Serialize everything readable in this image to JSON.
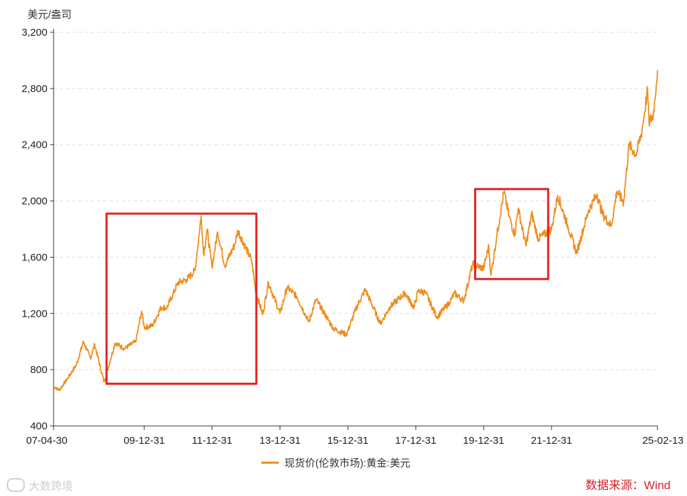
{
  "chart_data": {
    "type": "line",
    "ylabel": "美元/盎司",
    "y_ticks": [
      "3,200",
      "2,800",
      "2,400",
      "2,000",
      "1,600",
      "1,200",
      "800",
      "400"
    ],
    "y_tick_values": [
      3200,
      2800,
      2400,
      2000,
      1600,
      1200,
      800,
      400
    ],
    "ylim": [
      400,
      3200
    ],
    "x_ticks": [
      "07-04-30",
      "09-12-31",
      "11-12-31",
      "13-12-31",
      "15-12-31",
      "17-12-31",
      "19-12-31",
      "21-12-31",
      "25-02-13"
    ],
    "x_tick_dates": [
      "2007-04-30",
      "2009-12-31",
      "2011-12-31",
      "2013-12-31",
      "2015-12-31",
      "2017-12-31",
      "2019-12-31",
      "2021-12-31",
      "2025-02-13"
    ],
    "xlim": [
      "2007-04-30",
      "2025-02-13"
    ],
    "grid": "horizontal-dashed",
    "legend_position": "bottom-center",
    "series": [
      {
        "name": "现货价(伦敦市场):黄金:美元",
        "color": "#f08c1c",
        "points": [
          [
            "2007-04-30",
            680
          ],
          [
            "2007-06-30",
            655
          ],
          [
            "2007-09-30",
            740
          ],
          [
            "2007-12-31",
            835
          ],
          [
            "2008-03-17",
            1000
          ],
          [
            "2008-05-31",
            880
          ],
          [
            "2008-07-15",
            980
          ],
          [
            "2008-10-24",
            712
          ],
          [
            "2008-12-31",
            870
          ],
          [
            "2009-02-20",
            990
          ],
          [
            "2009-05-31",
            950
          ],
          [
            "2009-09-30",
            1000
          ],
          [
            "2009-12-03",
            1215
          ],
          [
            "2009-12-31",
            1100
          ],
          [
            "2010-03-31",
            1115
          ],
          [
            "2010-06-30",
            1245
          ],
          [
            "2010-08-31",
            1240
          ],
          [
            "2010-12-31",
            1420
          ],
          [
            "2011-03-31",
            1440
          ],
          [
            "2011-06-30",
            1505
          ],
          [
            "2011-09-05",
            1895
          ],
          [
            "2011-09-30",
            1620
          ],
          [
            "2011-11-08",
            1795
          ],
          [
            "2011-12-29",
            1530
          ],
          [
            "2012-02-29",
            1780
          ],
          [
            "2012-05-16",
            1540
          ],
          [
            "2012-08-31",
            1690
          ],
          [
            "2012-10-04",
            1790
          ],
          [
            "2012-12-31",
            1660
          ],
          [
            "2013-02-28",
            1580
          ],
          [
            "2013-04-16",
            1350
          ],
          [
            "2013-06-28",
            1192
          ],
          [
            "2013-08-28",
            1420
          ],
          [
            "2013-12-31",
            1200
          ],
          [
            "2014-03-17",
            1385
          ],
          [
            "2014-06-30",
            1320
          ],
          [
            "2014-11-06",
            1140
          ],
          [
            "2015-01-22",
            1300
          ],
          [
            "2015-07-31",
            1090
          ],
          [
            "2015-12-17",
            1050
          ],
          [
            "2016-03-31",
            1240
          ],
          [
            "2016-07-06",
            1370
          ],
          [
            "2016-12-15",
            1128
          ],
          [
            "2017-03-31",
            1250
          ],
          [
            "2017-09-08",
            1346
          ],
          [
            "2017-12-12",
            1240
          ],
          [
            "2018-01-25",
            1360
          ],
          [
            "2018-04-11",
            1350
          ],
          [
            "2018-08-16",
            1175
          ],
          [
            "2018-12-31",
            1280
          ],
          [
            "2019-02-20",
            1345
          ],
          [
            "2019-05-31",
            1290
          ],
          [
            "2019-09-04",
            1550
          ],
          [
            "2019-12-31",
            1520
          ],
          [
            "2020-02-24",
            1680
          ],
          [
            "2020-03-19",
            1470
          ],
          [
            "2020-05-18",
            1740
          ],
          [
            "2020-08-06",
            2067
          ],
          [
            "2020-09-30",
            1890
          ],
          [
            "2020-11-30",
            1760
          ],
          [
            "2021-01-06",
            1950
          ],
          [
            "2021-03-30",
            1680
          ],
          [
            "2021-06-01",
            1910
          ],
          [
            "2021-08-09",
            1730
          ],
          [
            "2021-12-31",
            1800
          ],
          [
            "2022-03-08",
            2040
          ],
          [
            "2022-06-30",
            1810
          ],
          [
            "2022-09-28",
            1630
          ],
          [
            "2023-01-31",
            1930
          ],
          [
            "2023-05-04",
            2050
          ],
          [
            "2023-06-30",
            1910
          ],
          [
            "2023-10-05",
            1820
          ],
          [
            "2023-12-04",
            2070
          ],
          [
            "2024-02-14",
            1990
          ],
          [
            "2024-04-12",
            2400
          ],
          [
            "2024-06-30",
            2330
          ],
          [
            "2024-08-30",
            2500
          ],
          [
            "2024-10-30",
            2790
          ],
          [
            "2024-11-14",
            2560
          ],
          [
            "2024-12-31",
            2610
          ],
          [
            "2025-02-13",
            2930
          ]
        ]
      }
    ],
    "annotations": [
      {
        "type": "rectangle",
        "color": "#e02020",
        "x_start": "2008-11-20",
        "x_end": "2013-04-20",
        "y_bottom": 700,
        "y_top": 1910
      },
      {
        "type": "rectangle",
        "color": "#e02020",
        "x_start": "2019-10-01",
        "x_end": "2021-11-25",
        "y_bottom": 1445,
        "y_top": 2085
      }
    ]
  },
  "legend": {
    "label": "现货价(伦敦市场):黄金:美元"
  },
  "source": "数据来源：Wind",
  "watermark": "大数跨境"
}
